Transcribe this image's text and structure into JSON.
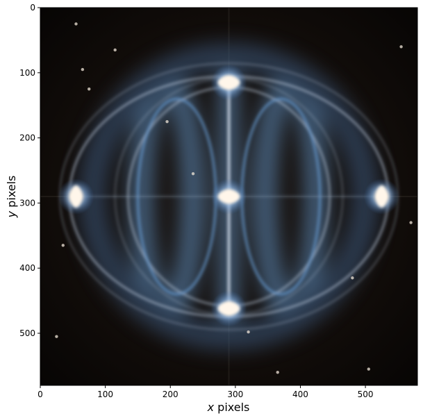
{
  "chart_data": {
    "type": "heatmap",
    "title": "",
    "xlabel_var": "x",
    "xlabel_unit": "pixels",
    "ylabel_var": "y",
    "ylabel_unit": "pixels",
    "xlim": [
      0,
      580
    ],
    "ylim": [
      580,
      0
    ],
    "x_ticks": [
      0,
      100,
      200,
      300,
      400,
      500
    ],
    "y_ticks": [
      0,
      100,
      200,
      300,
      400,
      500
    ],
    "x_tick_labels": [
      "0",
      "100",
      "200",
      "300",
      "400",
      "500"
    ],
    "y_tick_labels": [
      "0",
      "100",
      "200",
      "300",
      "400",
      "500"
    ],
    "grid": false,
    "colormap": "false-color astronomical image (black background, blue-white highlights)",
    "image_features": {
      "center": [
        290,
        290
      ],
      "bright_knots": [
        {
          "x": 290,
          "y": 115
        },
        {
          "x": 290,
          "y": 290
        },
        {
          "x": 290,
          "y": 462
        },
        {
          "x": 55,
          "y": 290
        },
        {
          "x": 525,
          "y": 290
        }
      ],
      "outer_ellipse_radii": [
        245,
        260
      ],
      "inner_ring_radii": [
        155,
        175
      ]
    },
    "colors": {
      "background": "#0b0705",
      "glow": "#6aa0d8",
      "knot": "#fff6ea",
      "ring": "#c8d6e8"
    }
  }
}
